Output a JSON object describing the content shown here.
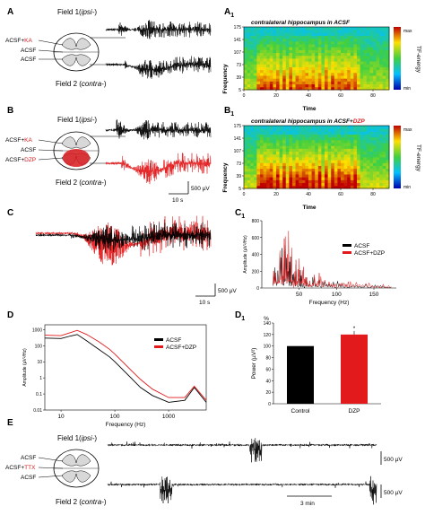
{
  "figure": {
    "panel_labels": {
      "A": "A",
      "A1": "A",
      "B": "B",
      "B1": "B",
      "C": "C",
      "C1": "C",
      "D": "D",
      "D1": "D",
      "E": "E",
      "sub": "1"
    },
    "field1_prefix": "Field 1(",
    "field1_ital": "ipsi-",
    "field_close": ")",
    "field2_prefix": "Field 2 (",
    "field2_ital": "contra-",
    "acsf": "ACSF",
    "acsf_plus": "ACSF+",
    "ka": "KA",
    "dzp": "DZP",
    "ttx": "TTX",
    "scale_500uv": "500 µV",
    "scale_10s": "10 s",
    "scale_3min": "3 min",
    "spec_title_a1": "contralateral hippocampus in ACSF",
    "spec_title_b1_prefix": "contralateral hippocampus in ACSF+",
    "spec_title_b1_red": "DZP",
    "spec_ylabel": "Frequency",
    "spec_xlabel": "Time",
    "colorbar_label": "TF-energy",
    "colorbar_max": "max",
    "colorbar_min": "min",
    "colors": {
      "acsf": "#000000",
      "dzp": "#e31a1c",
      "ka": "#d7191c"
    }
  },
  "chart_data": [
    {
      "panel": "A1",
      "type": "heatmap",
      "title": "contralateral hippocampus in ACSF",
      "xlabel": "Time",
      "ylabel": "Frequency",
      "yticks": [
        5,
        39,
        73,
        107,
        141,
        175
      ],
      "xticks": [
        0,
        20,
        40,
        60,
        80
      ],
      "xlim": [
        0,
        90
      ],
      "colorbar": [
        "min",
        "max"
      ]
    },
    {
      "panel": "B1",
      "type": "heatmap",
      "title": "contralateral hippocampus in ACSF+DZP",
      "xlabel": "Time",
      "ylabel": "Frequency",
      "yticks": [
        5,
        39,
        73,
        107,
        141,
        175
      ],
      "xticks": [
        0,
        20,
        40,
        60,
        80
      ],
      "xlim": [
        0,
        90
      ],
      "colorbar": [
        "min",
        "max"
      ]
    },
    {
      "panel": "C1",
      "type": "line",
      "xlabel": "Frequency (Hz)",
      "ylabel": "Amplitude (µV²/Hz)",
      "xticks": [
        50,
        100,
        150
      ],
      "yticks": [
        0,
        200,
        400,
        600,
        800
      ],
      "xlim": [
        0,
        180
      ],
      "ylim": [
        0,
        800
      ],
      "legend": "right",
      "series": [
        {
          "name": "ACSF",
          "x": [
            15,
            25,
            35,
            45,
            55,
            65,
            80,
            100,
            120,
            150,
            175
          ],
          "values": [
            260,
            640,
            480,
            300,
            210,
            150,
            120,
            90,
            60,
            40,
            20
          ]
        },
        {
          "name": "ACSF+DZP",
          "x": [
            15,
            25,
            35,
            45,
            55,
            65,
            80,
            100,
            120,
            150,
            175
          ],
          "values": [
            240,
            500,
            700,
            420,
            290,
            200,
            180,
            130,
            90,
            60,
            30
          ]
        }
      ]
    },
    {
      "panel": "D",
      "type": "line",
      "xlabel": "Frequency (Hz)",
      "ylabel": "Amplitude (µV²/Hz)",
      "xscale": "log",
      "yscale": "log",
      "xticks": [
        10,
        100,
        1000
      ],
      "yticks": [
        0.01,
        0.1,
        1,
        10,
        100,
        1000
      ],
      "xlim": [
        5,
        5000
      ],
      "ylim": [
        0.01,
        2000
      ],
      "legend": "top-right",
      "series": [
        {
          "name": "ACSF",
          "x": [
            5,
            10,
            15,
            20,
            30,
            50,
            80,
            100,
            200,
            300,
            500,
            1000,
            2000,
            3000,
            5000
          ],
          "values": [
            300,
            280,
            400,
            500,
            200,
            60,
            20,
            10,
            1,
            0.25,
            0.08,
            0.03,
            0.04,
            0.25,
            0.03
          ]
        },
        {
          "name": "ACSF+DZP",
          "x": [
            5,
            10,
            15,
            20,
            30,
            50,
            80,
            100,
            200,
            300,
            500,
            1000,
            2000,
            3000,
            5000
          ],
          "values": [
            450,
            420,
            650,
            900,
            500,
            180,
            60,
            30,
            3,
            0.8,
            0.2,
            0.06,
            0.06,
            0.3,
            0.04
          ]
        }
      ]
    },
    {
      "panel": "D1",
      "type": "bar",
      "ylabel_top": "%",
      "ylabel": "Power (µV²)",
      "categories": [
        "Control",
        "DZP"
      ],
      "values": [
        100,
        120
      ],
      "ylim": [
        0,
        140
      ],
      "yticks": [
        0,
        20,
        40,
        60,
        80,
        100,
        120,
        140
      ],
      "colors": [
        "#000000",
        "#e31a1c"
      ],
      "annotation": "*"
    }
  ]
}
